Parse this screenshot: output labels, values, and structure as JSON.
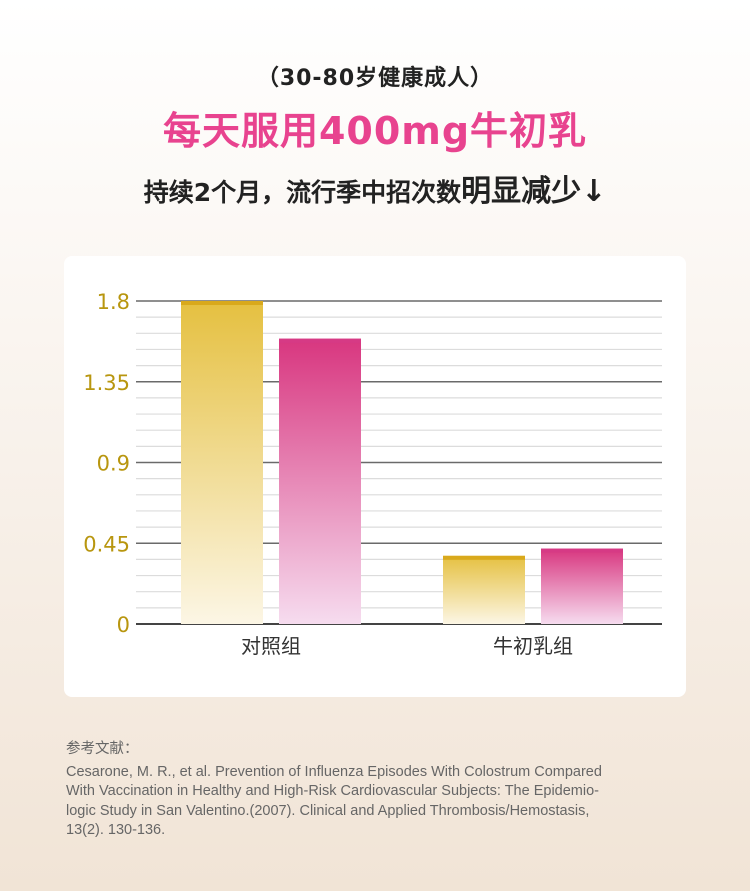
{
  "header": {
    "subtitle": "（30-80岁健康成人）",
    "headline": "每天服用400mg牛初乳",
    "tagline_lead": "持续2个月，流行季中招次数",
    "tagline_emphasis": "明显减少↓"
  },
  "colors": {
    "headline": "#e8438f",
    "tick_label": "#b8960f",
    "series_gold": "#d9a91c",
    "series_pink": "#d63a85"
  },
  "chart_data": {
    "type": "bar",
    "categories": [
      "对照组",
      "牛初乳组"
    ],
    "series": [
      {
        "values": [
          1.8,
          0.38
        ],
        "color": "#d9a91c"
      },
      {
        "values": [
          1.59,
          0.42
        ],
        "color": "#d63a85"
      }
    ],
    "yticks": [
      0,
      0.45,
      0.9,
      1.35,
      1.8
    ],
    "ytick_labels": [
      "0",
      "0.45",
      "0.9",
      "1.35",
      "1.8"
    ],
    "ylim": [
      0,
      1.8
    ],
    "xlabel": "",
    "ylabel": "",
    "grid": true,
    "legend": false
  },
  "references": {
    "title": "参考文献：",
    "lines": [
      "Cesarone, M. R., et al. Prevention of Influenza Episodes With Colostrum Compared",
      "With Vaccination in Healthy and High-Risk Cardiovascular Subjects: The Epidemio-",
      "logic Study in San Valentino.(2007). Clinical and Applied Thrombosis/Hemostasis,",
      "13(2). 130-136."
    ]
  }
}
